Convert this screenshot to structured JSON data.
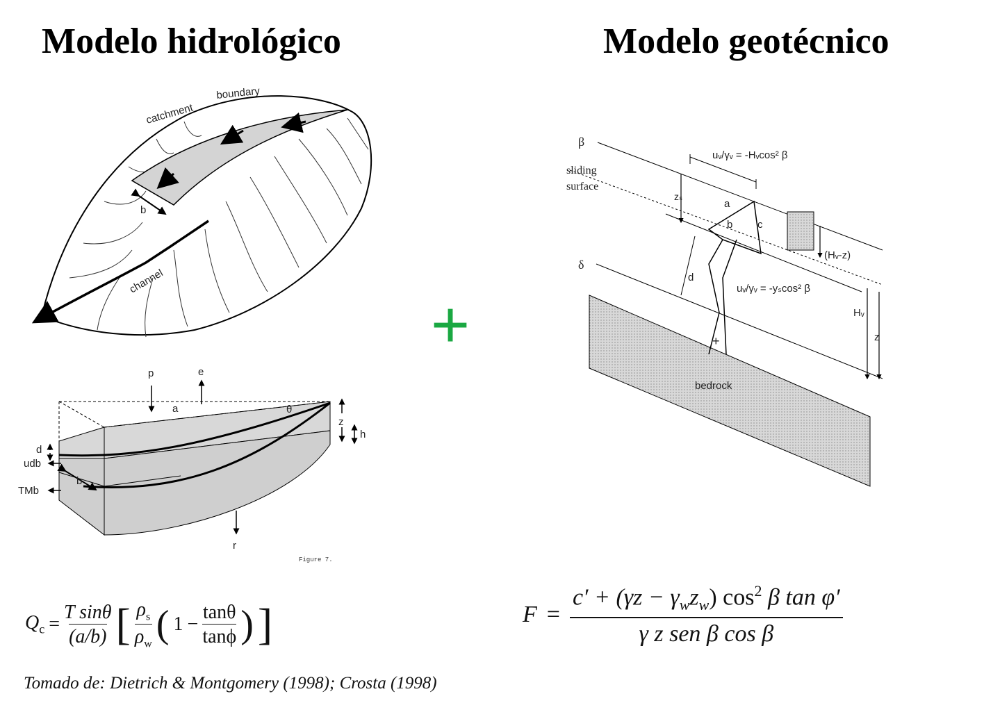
{
  "titles": {
    "left": "Modelo hidrológico",
    "right": "Modelo geotécnico"
  },
  "plus_symbol": "+",
  "plus_color": "#1aa842",
  "hydro_catchment": {
    "labels": {
      "catchment": "catchment",
      "boundary": "boundary",
      "channel": "channel",
      "b": "b"
    }
  },
  "hydro_block": {
    "labels": {
      "p": "p",
      "e": "e",
      "a": "a",
      "theta": "θ",
      "z": "z",
      "h": "h",
      "d": "d",
      "udb": "udb",
      "b": "b",
      "TMb": "TMb",
      "r": "r",
      "figure": "Figure 7."
    }
  },
  "geotech": {
    "labels": {
      "beta": "β",
      "sliding": "sliding",
      "surface": "surface",
      "zs": "zₛ",
      "uw_top": "uᵥ/γᵥ = -Hᵥcos² β",
      "a": "a",
      "b": "b",
      "c": "c",
      "hw_minus_z": "(Hᵥ-z)",
      "delta": "δ",
      "d": "d",
      "uw_bottom": "uᵥ/γᵥ = -yₛcos² β",
      "hw": "Hᵥ",
      "z": "z",
      "plus": "+",
      "bedrock": "bedrock"
    }
  },
  "equations": {
    "hydro": {
      "lhs": "Q",
      "lhs_sub": "c",
      "frac1_num": "T sinθ",
      "frac1_den": "(a/b)",
      "frac2_num": "ρ",
      "frac2_num_sub": "s",
      "frac2_den": "ρ",
      "frac2_den_sub": "w",
      "one": "1",
      "minus": "−",
      "frac3_num": "tanθ",
      "frac3_den": "tanϕ"
    },
    "geotech": {
      "lhs": "F",
      "numerator": "c′ + (γz − γ",
      "num_sub1": "w",
      "num_mid": "z",
      "num_sub2": "w",
      "num_end": ") cos",
      "num_sup": "2",
      "num_tail": " β tan φ′",
      "denominator": "γ z sen β cos β"
    }
  },
  "citation": "Tomado de: Dietrich & Montgomery (1998); Crosta (1998)"
}
